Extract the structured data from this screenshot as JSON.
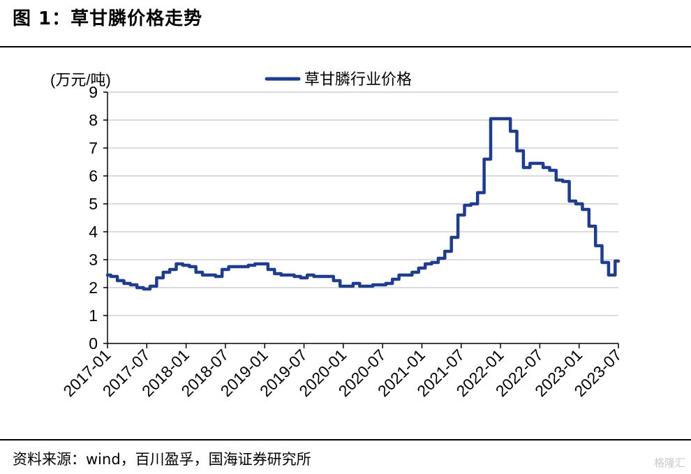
{
  "figure": {
    "title": "图 1：草甘膦价格走势",
    "source": "资料来源：wind，百川盈孚，国海证券研究所",
    "watermark": "格隆汇"
  },
  "colors": {
    "series": "#1f3d8c",
    "grid": "#c8c8c8",
    "axis": "#000000"
  },
  "chart_data": {
    "type": "line",
    "ylabel": "(万元/吨)",
    "ylim": [
      0,
      9
    ],
    "yticks": [
      0,
      1,
      2,
      3,
      4,
      5,
      6,
      7,
      8,
      9
    ],
    "xlim": [
      "2017-01",
      "2023-07"
    ],
    "xticks": [
      "2017-01",
      "2017-07",
      "2018-01",
      "2018-07",
      "2019-01",
      "2019-07",
      "2020-01",
      "2020-07",
      "2021-01",
      "2021-07",
      "2022-01",
      "2022-07",
      "2023-01",
      "2023-07"
    ],
    "grid": true,
    "legend_position": "top-center",
    "series": [
      {
        "name": "草甘膦行业价格",
        "step": true,
        "points": [
          [
            "2017-01",
            2.45
          ],
          [
            "2017-02",
            2.4
          ],
          [
            "2017-03",
            2.25
          ],
          [
            "2017-04",
            2.15
          ],
          [
            "2017-05",
            2.1
          ],
          [
            "2017-06",
            2.0
          ],
          [
            "2017-07",
            1.95
          ],
          [
            "2017-08",
            2.05
          ],
          [
            "2017-09",
            2.35
          ],
          [
            "2017-10",
            2.55
          ],
          [
            "2017-11",
            2.65
          ],
          [
            "2017-12",
            2.85
          ],
          [
            "2018-01",
            2.8
          ],
          [
            "2018-02",
            2.75
          ],
          [
            "2018-03",
            2.55
          ],
          [
            "2018-04",
            2.45
          ],
          [
            "2018-05",
            2.45
          ],
          [
            "2018-06",
            2.4
          ],
          [
            "2018-07",
            2.65
          ],
          [
            "2018-08",
            2.75
          ],
          [
            "2018-09",
            2.75
          ],
          [
            "2018-10",
            2.75
          ],
          [
            "2018-11",
            2.8
          ],
          [
            "2018-12",
            2.85
          ],
          [
            "2019-01",
            2.85
          ],
          [
            "2019-02",
            2.65
          ],
          [
            "2019-03",
            2.5
          ],
          [
            "2019-04",
            2.45
          ],
          [
            "2019-05",
            2.45
          ],
          [
            "2019-06",
            2.4
          ],
          [
            "2019-07",
            2.35
          ],
          [
            "2019-08",
            2.45
          ],
          [
            "2019-09",
            2.4
          ],
          [
            "2019-10",
            2.4
          ],
          [
            "2019-11",
            2.4
          ],
          [
            "2019-12",
            2.25
          ],
          [
            "2020-01",
            2.05
          ],
          [
            "2020-02",
            2.05
          ],
          [
            "2020-03",
            2.15
          ],
          [
            "2020-04",
            2.05
          ],
          [
            "2020-05",
            2.05
          ],
          [
            "2020-06",
            2.1
          ],
          [
            "2020-07",
            2.1
          ],
          [
            "2020-08",
            2.15
          ],
          [
            "2020-09",
            2.3
          ],
          [
            "2020-10",
            2.45
          ],
          [
            "2020-11",
            2.45
          ],
          [
            "2020-12",
            2.55
          ],
          [
            "2021-01",
            2.7
          ],
          [
            "2021-02",
            2.85
          ],
          [
            "2021-03",
            2.9
          ],
          [
            "2021-04",
            3.05
          ],
          [
            "2021-05",
            3.3
          ],
          [
            "2021-06",
            3.8
          ],
          [
            "2021-07",
            4.6
          ],
          [
            "2021-08",
            4.95
          ],
          [
            "2021-09",
            5.0
          ],
          [
            "2021-10",
            5.4
          ],
          [
            "2021-11",
            6.6
          ],
          [
            "2021-12",
            8.05
          ],
          [
            "2022-01",
            8.05
          ],
          [
            "2022-02",
            8.05
          ],
          [
            "2022-03",
            7.6
          ],
          [
            "2022-04",
            6.9
          ],
          [
            "2022-05",
            6.3
          ],
          [
            "2022-06",
            6.45
          ],
          [
            "2022-07",
            6.45
          ],
          [
            "2022-08",
            6.3
          ],
          [
            "2022-09",
            6.2
          ],
          [
            "2022-10",
            5.85
          ],
          [
            "2022-11",
            5.8
          ],
          [
            "2022-12",
            5.1
          ],
          [
            "2023-01",
            5.0
          ],
          [
            "2023-02",
            4.8
          ],
          [
            "2023-03",
            4.2
          ],
          [
            "2023-04",
            3.5
          ],
          [
            "2023-05",
            2.9
          ],
          [
            "2023-06",
            2.45
          ],
          [
            "2023-07",
            2.95
          ]
        ]
      }
    ]
  }
}
